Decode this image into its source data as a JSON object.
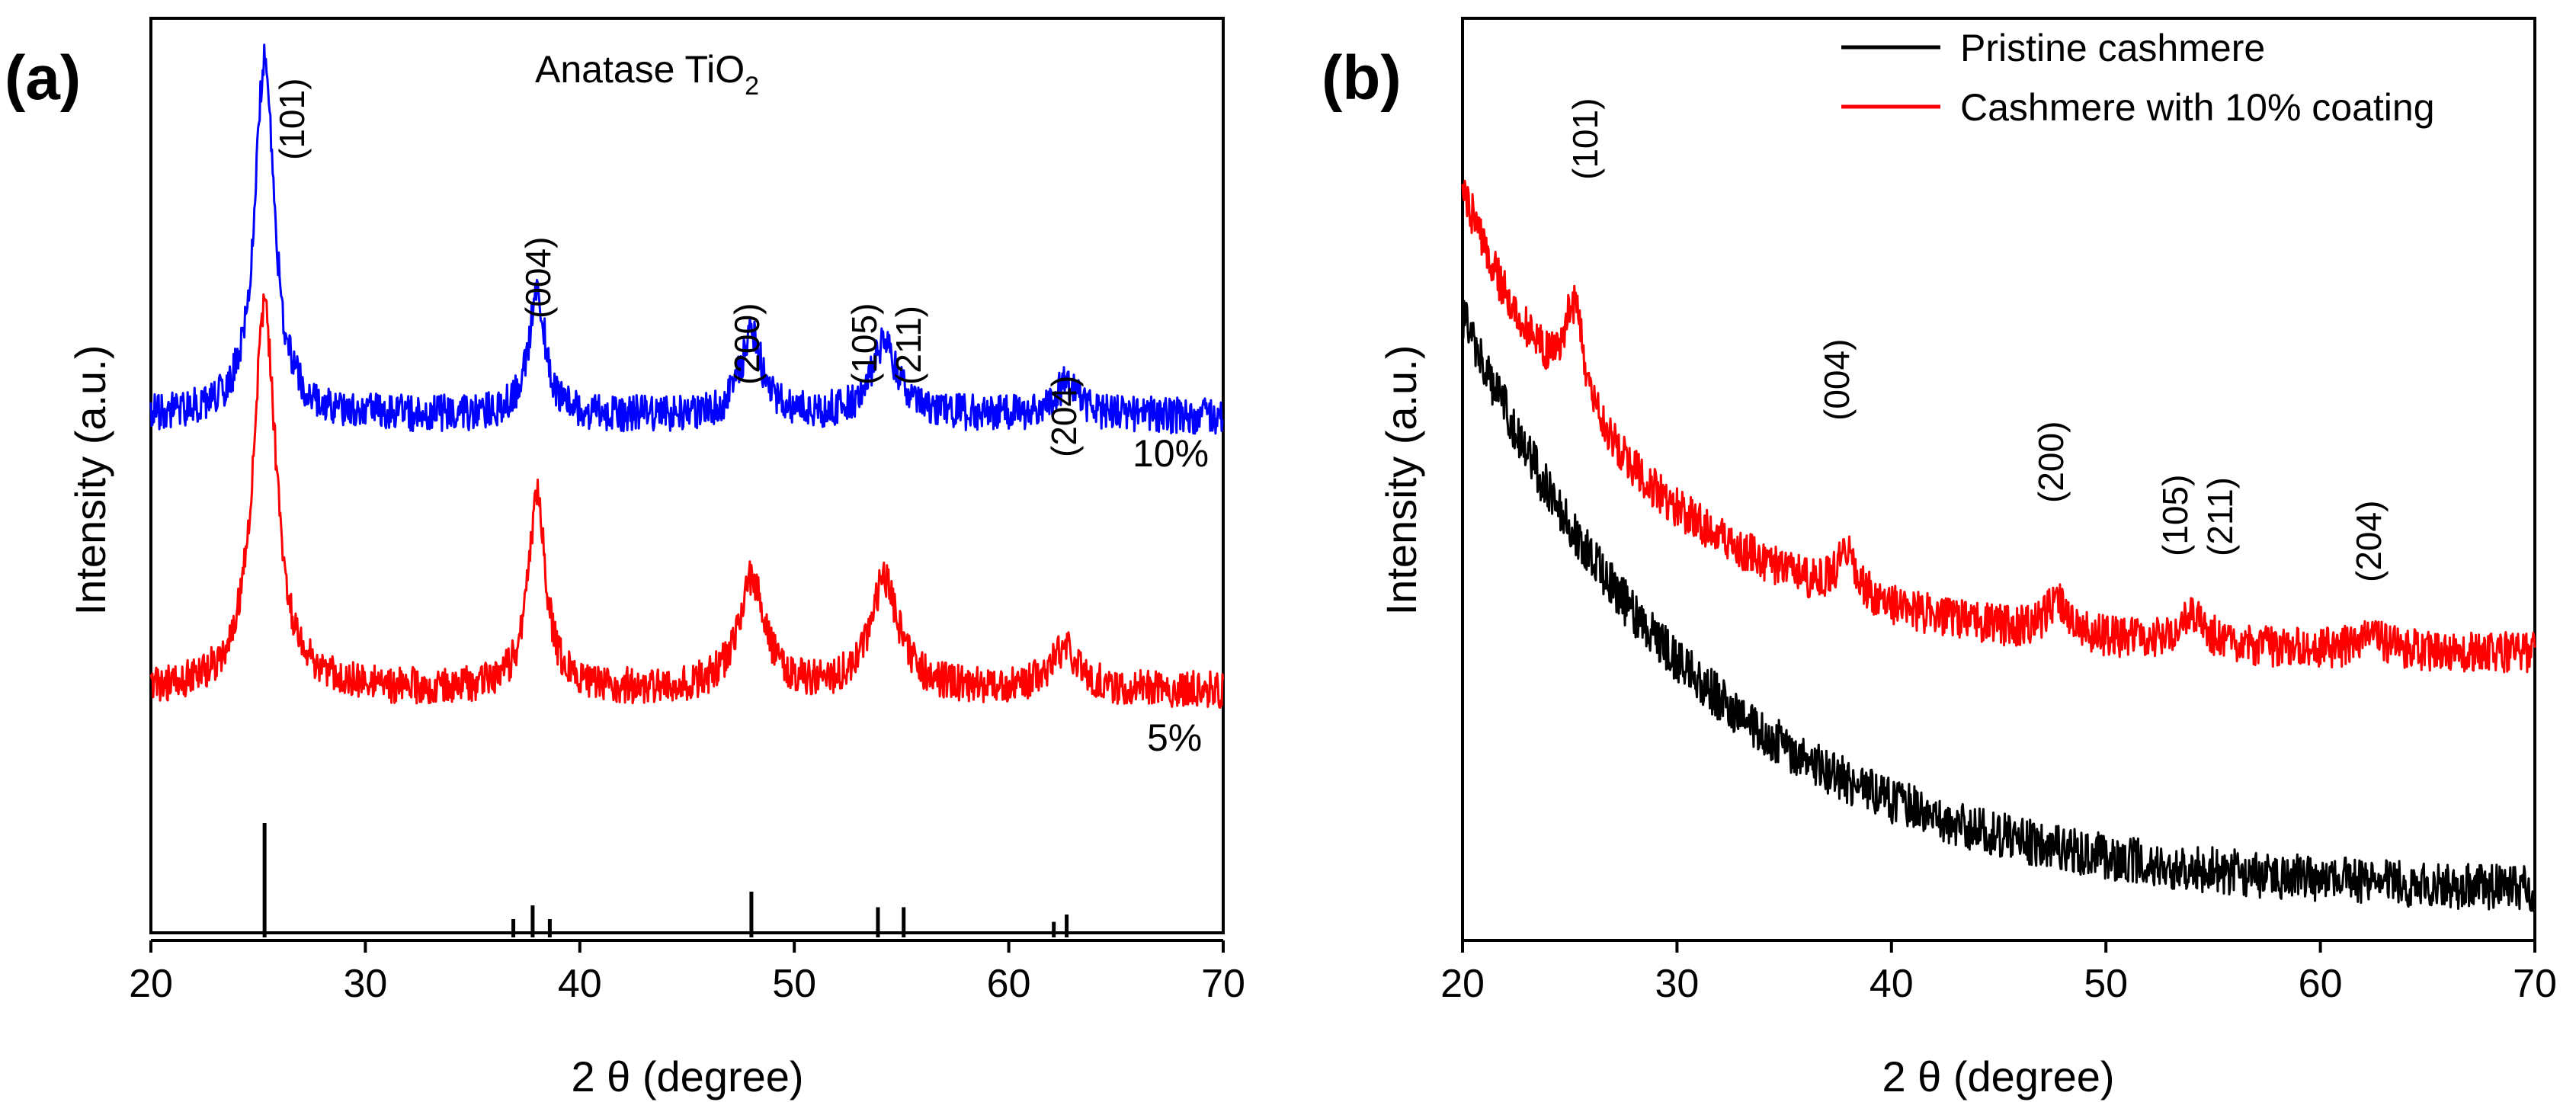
{
  "chart_data": [
    {
      "type": "line",
      "panel_label": "(a)",
      "title": "",
      "xlabel": "2 θ (degree)",
      "ylabel": "Intensity (a.u.)",
      "xlim": [
        20,
        70
      ],
      "xticks": [
        20,
        30,
        40,
        50,
        60,
        70
      ],
      "annotation": {
        "main": "Anatase TiO",
        "sub": "2"
      },
      "series": [
        {
          "name": "10%",
          "color": "#0000ff",
          "baseline": 0.565,
          "slope": 0.0,
          "noise": 0.02,
          "peaks": [
            {
              "pos": 25.3,
              "h": 0.39,
              "w": 0.55,
              "label": "(101)"
            },
            {
              "pos": 38.0,
              "h": 0.14,
              "w": 0.45,
              "label": "(004)"
            },
            {
              "pos": 48.0,
              "h": 0.09,
              "w": 0.6,
              "label": "(200)"
            },
            {
              "pos": 54.2,
              "h": 0.08,
              "w": 0.7,
              "label": "(105) (211)"
            },
            {
              "pos": 62.7,
              "h": 0.035,
              "w": 0.7,
              "label": "(204)"
            }
          ]
        },
        {
          "name": "5%",
          "color": "#ff0000",
          "baseline": 0.265,
          "slope": 0.0,
          "noise": 0.02,
          "peaks": [
            {
              "pos": 25.3,
              "h": 0.42,
              "w": 0.65,
              "label": ""
            },
            {
              "pos": 38.0,
              "h": 0.21,
              "w": 0.5,
              "label": ""
            },
            {
              "pos": 48.0,
              "h": 0.12,
              "w": 0.75,
              "label": ""
            },
            {
              "pos": 54.2,
              "h": 0.12,
              "w": 0.8,
              "label": ""
            },
            {
              "pos": 62.6,
              "h": 0.045,
              "w": 0.8,
              "label": ""
            }
          ]
        }
      ],
      "series_labels": [
        "10%",
        "5%"
      ],
      "peak_labels": [
        "(101)",
        "(004)",
        "(200)",
        "(105)",
        "(211)",
        "(204)"
      ],
      "reference_lines": [
        {
          "pos": 25.3,
          "h": 0.12
        },
        {
          "pos": 36.9,
          "h": 0.015
        },
        {
          "pos": 37.8,
          "h": 0.03
        },
        {
          "pos": 38.6,
          "h": 0.015
        },
        {
          "pos": 48.0,
          "h": 0.045
        },
        {
          "pos": 53.9,
          "h": 0.028
        },
        {
          "pos": 55.1,
          "h": 0.028
        },
        {
          "pos": 62.1,
          "h": 0.012
        },
        {
          "pos": 62.7,
          "h": 0.02
        }
      ]
    },
    {
      "type": "line",
      "panel_label": "(b)",
      "title": "",
      "xlabel": "2 θ (degree)",
      "ylabel": "Intensity (a.u.)",
      "xlim": [
        20,
        70
      ],
      "xticks": [
        20,
        30,
        40,
        50,
        60,
        70
      ],
      "legend_position": "top-right",
      "series": [
        {
          "name": "Pristine cashmere",
          "color": "#000000",
          "start": 0.68,
          "end": 0.05,
          "decay": 11.0,
          "noise": 0.025,
          "peaks": []
        },
        {
          "name": "Cashmere with 10% coating",
          "color": "#ff0000",
          "start": 0.79,
          "end": 0.31,
          "decay": 9.0,
          "noise": 0.022,
          "peaks": [
            {
              "pos": 20.5,
              "h": 0.02,
              "w": 0.8,
              "label": ""
            },
            {
              "pos": 25.2,
              "h": 0.11,
              "w": 0.6,
              "label": "(101)"
            },
            {
              "pos": 37.9,
              "h": 0.05,
              "w": 0.5,
              "label": "(004)"
            },
            {
              "pos": 47.7,
              "h": 0.035,
              "w": 0.6,
              "label": "(200)"
            },
            {
              "pos": 54.0,
              "h": 0.035,
              "w": 0.7,
              "label": "(105) (211)"
            },
            {
              "pos": 62.5,
              "h": 0.015,
              "w": 0.8,
              "label": "(204)"
            }
          ]
        }
      ],
      "peak_labels": [
        "(101)",
        "(004)",
        "(200)",
        "(105)",
        "(211)",
        "(204)"
      ]
    }
  ]
}
